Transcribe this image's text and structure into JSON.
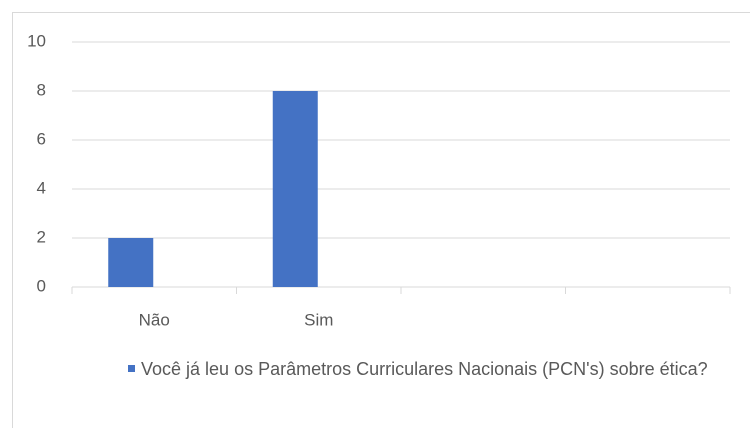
{
  "chart_data": {
    "type": "bar",
    "categories": [
      "Não",
      "Sim",
      null,
      null
    ],
    "series": [
      {
        "name": "Você já leu os Parâmetros Curriculares Nacionais (PCN's) sobre ética?",
        "color": "#4472c4",
        "values": [
          2,
          8,
          null,
          null
        ]
      }
    ],
    "ylim": [
      0,
      10
    ],
    "yticks": [
      0,
      2,
      4,
      6,
      8,
      10
    ],
    "grid": true,
    "legend": "bottom"
  }
}
